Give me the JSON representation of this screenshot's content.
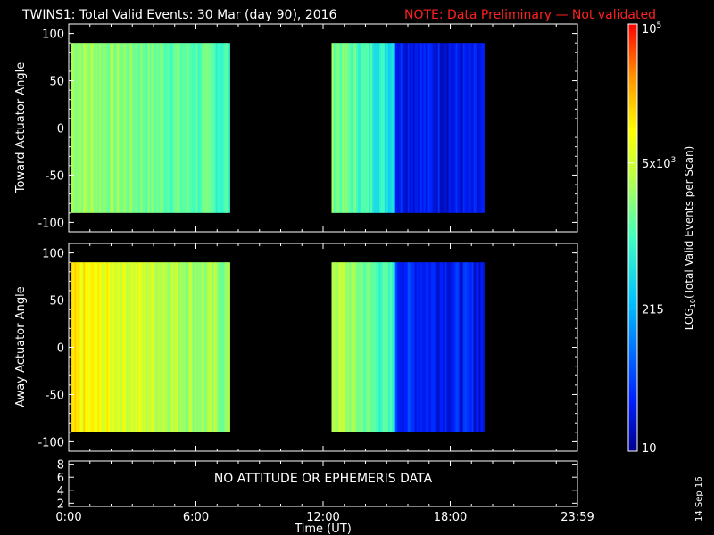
{
  "header": {
    "title": "TWINS1: Total Valid Events: 30 Mar (day  90), 2016",
    "note": "NOTE: Data Preliminary — Not validated",
    "note_color": "#ff2020"
  },
  "footer": {
    "stamp": "14 Sep 16",
    "no_data_text": "NO ATTITUDE OR EPHEMERIS DATA"
  },
  "chart_data": [
    {
      "type": "heatmap",
      "panel": "toward",
      "xlabel": "",
      "ylabel": "Toward Actuator Angle",
      "ylim": [
        -110,
        110
      ],
      "yticks": [
        "100",
        "50",
        "0",
        "-50",
        "-100"
      ],
      "data_rows": [
        -90,
        90
      ],
      "segments": [
        {
          "start_hour": 0.1,
          "end_hour": 7.6,
          "level_start": 0.62,
          "level_end": 0.5
        },
        {
          "start_hour": 12.4,
          "end_hour": 15.4,
          "level_start": 0.58,
          "level_end": 0.42
        },
        {
          "start_hour": 15.4,
          "end_hour": 19.6,
          "level_start": 0.12,
          "level_end": 0.08
        }
      ]
    },
    {
      "type": "heatmap",
      "panel": "away",
      "xlabel": "",
      "ylabel": "Away Actuator Angle",
      "ylim": [
        -110,
        110
      ],
      "yticks": [
        "100",
        "50",
        "0",
        "-50",
        "-100"
      ],
      "data_rows": [
        -90,
        90
      ],
      "segments": [
        {
          "start_hour": 0.1,
          "end_hour": 7.6,
          "level_start": 0.76,
          "level_end": 0.58
        },
        {
          "start_hour": 12.4,
          "end_hour": 15.4,
          "level_start": 0.66,
          "level_end": 0.46
        },
        {
          "start_hour": 15.4,
          "end_hour": 19.6,
          "level_start": 0.14,
          "level_end": 0.1
        }
      ]
    },
    {
      "type": "line",
      "panel": "attitude",
      "xlabel": "Time (UT)",
      "ylim": [
        1.5,
        8.5
      ],
      "yticks": [
        "8",
        "6",
        "4",
        "2"
      ],
      "xticks": [
        "0:00",
        "6:00",
        "12:00",
        "18:00",
        "23:59"
      ],
      "xlim_hours": [
        0,
        24
      ]
    }
  ],
  "colorbar": {
    "label": "LOG10(Total Valid Events per Scan)",
    "label_main": "LOG",
    "label_sub": "10",
    "label_rest": "(Total Valid Events per Scan)",
    "scale": "log",
    "range": [
      10,
      100000
    ],
    "ticks": [
      {
        "value": 100000,
        "label": "10",
        "sup": "5"
      },
      {
        "value": 5000,
        "label": "5x10",
        "sup": "3"
      },
      {
        "value": 215,
        "label": "215",
        "sup": ""
      },
      {
        "value": 10,
        "label": "10",
        "sup": ""
      }
    ]
  }
}
